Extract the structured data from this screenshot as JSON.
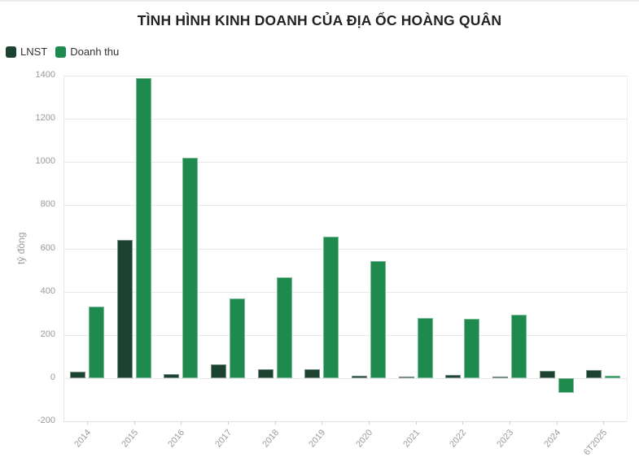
{
  "chart_data": {
    "type": "bar",
    "title": "TÌNH HÌNH KINH DOANH CỦA ĐỊA ỐC HOÀNG QUÂN",
    "ylabel": "tỷ đồng",
    "xlabel": "",
    "categories": [
      "2014",
      "2015",
      "2016",
      "2017",
      "2018",
      "2019",
      "2020",
      "2021",
      "2022",
      "2023",
      "2024",
      "6T2025"
    ],
    "series": [
      {
        "name": "LNST",
        "color": "#1c4231",
        "values": [
          30,
          640,
          20,
          65,
          40,
          40,
          10,
          5,
          15,
          5,
          35,
          38
        ]
      },
      {
        "name": "Doanh thu",
        "color": "#1e8a4e",
        "values": [
          330,
          1390,
          1020,
          367,
          467,
          655,
          540,
          280,
          275,
          293,
          -70,
          10
        ]
      }
    ],
    "ylim": [
      -200,
      1400
    ],
    "ytick_step": 200,
    "yticks": [
      1400,
      1200,
      1000,
      800,
      600,
      400,
      200,
      0,
      -200
    ],
    "grid": true,
    "legend_position": "top-left",
    "bar_outline_color": "rgba(255,255,255,0.42)"
  }
}
